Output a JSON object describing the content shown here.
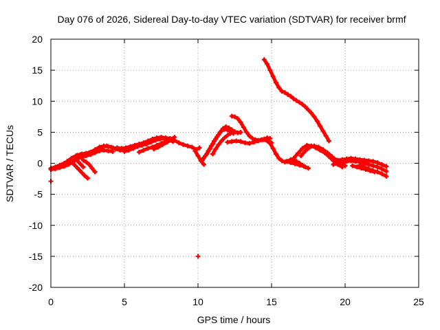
{
  "chart_data": {
    "type": "scatter",
    "title": "Day 076 of 2026, Sidereal Day-to-day VTEC variation (SDTVAR) for receiver brmf",
    "xlabel": "GPS time / hours",
    "ylabel": "SDTVAR / TECUs",
    "xlim": [
      0,
      25
    ],
    "ylim": [
      -20,
      20
    ],
    "xticks": [
      0,
      5,
      10,
      15,
      20,
      25
    ],
    "yticks": [
      -20,
      -15,
      -10,
      -5,
      0,
      5,
      10,
      15,
      20
    ],
    "xtick_labels": [
      "0",
      "5",
      "10",
      "15",
      "20",
      "25"
    ],
    "ytick_labels": [
      "-20",
      "-15",
      "-10",
      "-5",
      "0",
      "5",
      "10",
      "15",
      "20"
    ],
    "grid": true,
    "marker": "+",
    "color": "#ff0000",
    "series": [
      {
        "name": "arc-main-1",
        "x": [
          0.0,
          0.3,
          0.6,
          0.9,
          1.2,
          1.5,
          1.8,
          2.1,
          2.4,
          2.7,
          3.0,
          3.3,
          3.6,
          3.9,
          4.2,
          4.5,
          4.8,
          5.1
        ],
        "y": [
          -0.8,
          -0.6,
          -0.3,
          0.0,
          0.4,
          0.9,
          1.3,
          1.5,
          1.6,
          1.8,
          2.2,
          2.6,
          2.8,
          2.7,
          2.5,
          2.4,
          2.3,
          2.4
        ]
      },
      {
        "name": "arc-main-2",
        "x": [
          0.0,
          0.3,
          0.6,
          0.9,
          1.2,
          1.5,
          1.8,
          2.1,
          2.4,
          2.7,
          3.0,
          3.3,
          3.6,
          3.9,
          4.2
        ],
        "y": [
          -1.0,
          -0.9,
          -0.7,
          -0.5,
          -0.2,
          0.2,
          0.7,
          1.0,
          1.2,
          1.4,
          1.7,
          2.0,
          2.1,
          2.0,
          1.9
        ]
      },
      {
        "name": "arc-main-3",
        "x": [
          0.5,
          0.8,
          1.1,
          1.4,
          1.7,
          2.0,
          2.3,
          2.6,
          2.9,
          3.2,
          3.5,
          3.8,
          4.1,
          4.4,
          4.7,
          5.0
        ],
        "y": [
          -0.5,
          -0.2,
          0.3,
          0.8,
          1.2,
          1.4,
          1.5,
          1.7,
          1.9,
          2.3,
          2.6,
          2.8,
          2.6,
          2.3,
          2.1,
          2.0
        ]
      },
      {
        "name": "arc-drop-1",
        "x": [
          1.5,
          1.7,
          1.9,
          2.1,
          2.3,
          2.5
        ],
        "y": [
          0.0,
          -0.5,
          -1.0,
          -1.5,
          -2.0,
          -2.4
        ]
      },
      {
        "name": "arc-drop-2",
        "x": [
          2.2,
          2.4,
          2.6,
          2.8,
          3.0
        ],
        "y": [
          0.5,
          0.2,
          -0.2,
          -0.8,
          -1.4
        ]
      },
      {
        "name": "arc-drop-3",
        "x": [
          1.6,
          1.8,
          2.0,
          2.2
        ],
        "y": [
          0.9,
          0.4,
          -0.1,
          -0.6
        ]
      },
      {
        "name": "outlier-start",
        "x": [
          0.0
        ],
        "y": [
          -2.9
        ]
      },
      {
        "name": "arc-mid-1",
        "x": [
          4.5,
          4.8,
          5.1,
          5.4,
          5.7,
          6.0,
          6.3,
          6.6,
          6.9,
          7.2,
          7.5,
          7.8,
          8.1,
          8.4,
          8.7,
          9.0,
          9.3,
          9.6,
          9.9,
          10.1
        ],
        "y": [
          2.5,
          2.4,
          2.5,
          2.7,
          2.9,
          3.1,
          3.3,
          3.6,
          3.9,
          4.1,
          4.2,
          4.1,
          4.0,
          3.7,
          3.3,
          3.0,
          2.8,
          2.6,
          2.2,
          2.5
        ]
      },
      {
        "name": "arc-mid-2",
        "x": [
          5.0,
          5.3,
          5.6,
          5.9,
          6.2,
          6.5,
          6.8,
          7.1,
          7.4,
          7.7,
          8.0,
          8.3
        ],
        "y": [
          1.9,
          2.1,
          2.4,
          2.7,
          2.9,
          3.1,
          3.4,
          3.7,
          3.9,
          4.0,
          3.8,
          3.5
        ]
      },
      {
        "name": "arc-mid-3",
        "x": [
          6.0,
          6.3,
          6.6,
          6.9,
          7.2,
          7.5,
          7.8,
          8.1,
          8.4
        ],
        "y": [
          1.8,
          2.1,
          2.4,
          2.6,
          2.9,
          3.2,
          3.5,
          3.8,
          4.2
        ]
      },
      {
        "name": "arc-mid-4",
        "x": [
          7.0,
          7.3,
          7.6,
          7.9,
          8.2
        ],
        "y": [
          2.3,
          2.6,
          3.0,
          3.4,
          3.8
        ]
      },
      {
        "name": "arc-dip-1",
        "x": [
          9.8,
          10.0,
          10.2,
          10.4
        ],
        "y": [
          2.0,
          1.2,
          0.4,
          -0.2
        ]
      },
      {
        "name": "outlier-low",
        "x": [
          10.0
        ],
        "y": [
          -15.0
        ]
      },
      {
        "name": "arc-rise-1",
        "x": [
          10.3,
          10.5,
          10.7,
          10.9,
          11.1,
          11.3,
          11.5,
          11.7,
          11.9,
          12.1,
          12.3,
          12.5,
          12.7,
          12.9
        ],
        "y": [
          0.5,
          1.2,
          2.0,
          2.8,
          3.6,
          4.3,
          5.0,
          5.6,
          5.9,
          5.7,
          5.4,
          5.1,
          4.9,
          5.0
        ]
      },
      {
        "name": "arc-rise-2",
        "x": [
          10.4,
          10.6,
          10.8,
          11.0,
          11.2,
          11.4,
          11.6,
          11.8,
          12.0,
          12.2,
          12.4
        ],
        "y": [
          0.9,
          1.5,
          2.3,
          3.1,
          3.9,
          4.6,
          5.2,
          5.5,
          5.4,
          5.1,
          4.8
        ]
      },
      {
        "name": "arc-rise-3",
        "x": [
          11.0,
          11.2,
          11.4,
          11.6,
          11.8,
          12.0,
          12.2,
          12.4
        ],
        "y": [
          1.5,
          2.3,
          3.0,
          3.6,
          4.1,
          4.5,
          4.8,
          5.0
        ]
      },
      {
        "name": "arc-hump",
        "x": [
          12.3,
          12.5,
          12.7,
          12.9,
          13.1,
          13.3,
          13.5,
          13.7,
          13.9,
          14.1,
          14.3,
          14.5,
          14.7,
          14.9
        ],
        "y": [
          7.6,
          7.5,
          7.2,
          6.6,
          5.8,
          5.0,
          4.4,
          4.0,
          3.8,
          3.7,
          3.8,
          3.9,
          4.1,
          4.0
        ]
      },
      {
        "name": "arc-flat",
        "x": [
          12.0,
          12.3,
          12.6,
          12.9,
          13.2,
          13.5,
          13.8,
          14.1,
          14.4,
          14.7,
          15.0
        ],
        "y": [
          3.4,
          3.5,
          3.6,
          3.5,
          3.3,
          3.2,
          3.4,
          3.6,
          3.8,
          3.6,
          3.3
        ]
      },
      {
        "name": "arc-fall",
        "x": [
          14.7,
          14.9,
          15.1,
          15.3,
          15.5,
          15.7,
          15.9,
          16.1,
          16.3,
          16.5,
          16.7,
          16.9,
          17.1,
          17.3
        ],
        "y": [
          3.8,
          3.2,
          2.4,
          1.5,
          0.8,
          0.4,
          0.2,
          0.3,
          0.6,
          0.5,
          0.3,
          0.0,
          -0.3,
          -0.6
        ]
      },
      {
        "name": "arc-high",
        "x": [
          14.5,
          14.7,
          14.9,
          15.1,
          15.3,
          15.5,
          15.7,
          15.9,
          16.1,
          16.3,
          16.5,
          16.7,
          16.9,
          17.1,
          17.3,
          17.5,
          17.7,
          17.9,
          18.1,
          18.3,
          18.5,
          18.7,
          18.9
        ],
        "y": [
          16.7,
          16.0,
          15.0,
          14.0,
          13.0,
          12.2,
          11.6,
          11.4,
          11.1,
          10.8,
          10.4,
          10.1,
          9.8,
          9.5,
          9.1,
          8.6,
          8.1,
          7.5,
          6.8,
          6.0,
          5.2,
          4.4,
          3.6
        ]
      },
      {
        "name": "arc-late-1",
        "x": [
          16.5,
          16.8,
          17.1,
          17.4,
          17.7,
          18.0,
          18.3,
          18.6,
          18.9,
          19.2,
          19.5,
          19.8
        ],
        "y": [
          0.8,
          1.6,
          2.4,
          2.9,
          2.8,
          2.5,
          2.1,
          1.7,
          1.1,
          0.4,
          -0.2,
          -0.6
        ]
      },
      {
        "name": "arc-late-2",
        "x": [
          17.0,
          17.3,
          17.6,
          17.9,
          18.2,
          18.5,
          18.8,
          19.1,
          19.4,
          19.7,
          20.0
        ],
        "y": [
          1.2,
          2.0,
          2.6,
          2.8,
          2.6,
          2.2,
          1.7,
          1.1,
          0.5,
          0.0,
          -0.4
        ]
      },
      {
        "name": "arc-late-3",
        "x": [
          16.0,
          16.3,
          16.6,
          16.9,
          17.2,
          17.5
        ],
        "y": [
          0.3,
          0.1,
          -0.1,
          -0.3,
          -0.5,
          -0.8
        ]
      },
      {
        "name": "arc-tail-1",
        "x": [
          19.5,
          19.8,
          20.1,
          20.4,
          20.7,
          21.0,
          21.3,
          21.6,
          21.9,
          22.2,
          22.5,
          22.8
        ],
        "y": [
          0.5,
          0.6,
          0.7,
          0.8,
          0.7,
          0.6,
          0.5,
          0.4,
          0.3,
          0.1,
          -0.2,
          -0.5
        ]
      },
      {
        "name": "arc-tail-2",
        "x": [
          19.2,
          19.5,
          19.8,
          20.1,
          20.4,
          20.7,
          21.0,
          21.3,
          21.6,
          21.9,
          22.2,
          22.5,
          22.8
        ],
        "y": [
          -0.2,
          0.0,
          0.2,
          0.3,
          0.4,
          0.3,
          0.2,
          0.0,
          -0.2,
          -0.4,
          -0.6,
          -0.9,
          -1.3
        ]
      },
      {
        "name": "arc-tail-3",
        "x": [
          21.0,
          21.3,
          21.6,
          21.9,
          22.2,
          22.5,
          22.8
        ],
        "y": [
          -0.3,
          -0.6,
          -0.9,
          -1.2,
          -1.4,
          -1.7,
          -2.1
        ]
      },
      {
        "name": "arc-tail-4",
        "x": [
          20.5,
          20.8,
          21.1,
          21.4,
          21.7,
          22.0
        ],
        "y": [
          -0.4,
          -0.6,
          -0.8,
          -1.0,
          -1.2,
          -1.4
        ]
      }
    ]
  }
}
